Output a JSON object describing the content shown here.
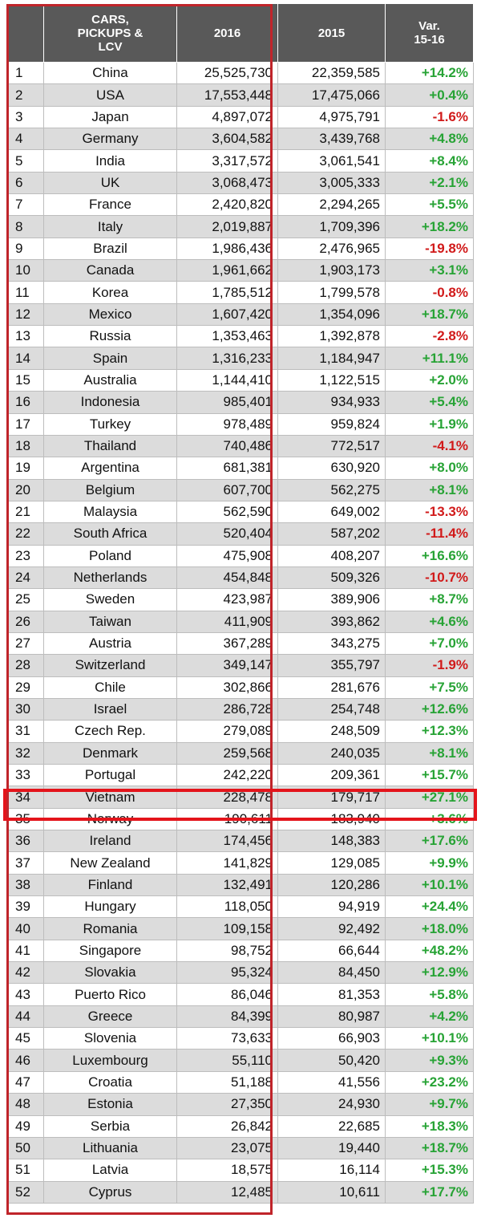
{
  "chart_data": {
    "type": "table",
    "headers": {
      "rank": "",
      "country": "CARS,\nPICKUPS &\nLCV",
      "y2016": "2016",
      "y2015": "2015",
      "variation": "Var.\n15-16"
    },
    "rows": [
      {
        "rank": "1",
        "country": "China",
        "y2016": "25,525,730",
        "y2015": "22,359,585",
        "var": "+14.2%"
      },
      {
        "rank": "2",
        "country": "USA",
        "y2016": "17,553,448",
        "y2015": "17,475,066",
        "var": "+0.4%"
      },
      {
        "rank": "3",
        "country": "Japan",
        "y2016": "4,897,072",
        "y2015": "4,975,791",
        "var": "-1.6%"
      },
      {
        "rank": "4",
        "country": "Germany",
        "y2016": "3,604,582",
        "y2015": "3,439,768",
        "var": "+4.8%"
      },
      {
        "rank": "5",
        "country": "India",
        "y2016": "3,317,572",
        "y2015": "3,061,541",
        "var": "+8.4%"
      },
      {
        "rank": "6",
        "country": "UK",
        "y2016": "3,068,473",
        "y2015": "3,005,333",
        "var": "+2.1%"
      },
      {
        "rank": "7",
        "country": "France",
        "y2016": "2,420,820",
        "y2015": "2,294,265",
        "var": "+5.5%"
      },
      {
        "rank": "8",
        "country": "Italy",
        "y2016": "2,019,887",
        "y2015": "1,709,396",
        "var": "+18.2%"
      },
      {
        "rank": "9",
        "country": "Brazil",
        "y2016": "1,986,436",
        "y2015": "2,476,965",
        "var": "-19.8%"
      },
      {
        "rank": "10",
        "country": "Canada",
        "y2016": "1,961,662",
        "y2015": "1,903,173",
        "var": "+3.1%"
      },
      {
        "rank": "11",
        "country": "Korea",
        "y2016": "1,785,512",
        "y2015": "1,799,578",
        "var": "-0.8%"
      },
      {
        "rank": "12",
        "country": "Mexico",
        "y2016": "1,607,420",
        "y2015": "1,354,096",
        "var": "+18.7%"
      },
      {
        "rank": "13",
        "country": "Russia",
        "y2016": "1,353,463",
        "y2015": "1,392,878",
        "var": "-2.8%"
      },
      {
        "rank": "14",
        "country": "Spain",
        "y2016": "1,316,233",
        "y2015": "1,184,947",
        "var": "+11.1%"
      },
      {
        "rank": "15",
        "country": "Australia",
        "y2016": "1,144,410",
        "y2015": "1,122,515",
        "var": "+2.0%"
      },
      {
        "rank": "16",
        "country": "Indonesia",
        "y2016": "985,401",
        "y2015": "934,933",
        "var": "+5.4%"
      },
      {
        "rank": "17",
        "country": "Turkey",
        "y2016": "978,489",
        "y2015": "959,824",
        "var": "+1.9%"
      },
      {
        "rank": "18",
        "country": "Thailand",
        "y2016": "740,486",
        "y2015": "772,517",
        "var": "-4.1%"
      },
      {
        "rank": "19",
        "country": "Argentina",
        "y2016": "681,381",
        "y2015": "630,920",
        "var": "+8.0%"
      },
      {
        "rank": "20",
        "country": "Belgium",
        "y2016": "607,700",
        "y2015": "562,275",
        "var": "+8.1%"
      },
      {
        "rank": "21",
        "country": "Malaysia",
        "y2016": "562,590",
        "y2015": "649,002",
        "var": "-13.3%"
      },
      {
        "rank": "22",
        "country": "South Africa",
        "y2016": "520,404",
        "y2015": "587,202",
        "var": "-11.4%"
      },
      {
        "rank": "23",
        "country": "Poland",
        "y2016": "475,908",
        "y2015": "408,207",
        "var": "+16.6%"
      },
      {
        "rank": "24",
        "country": "Netherlands",
        "y2016": "454,848",
        "y2015": "509,326",
        "var": "-10.7%"
      },
      {
        "rank": "25",
        "country": "Sweden",
        "y2016": "423,987",
        "y2015": "389,906",
        "var": "+8.7%"
      },
      {
        "rank": "26",
        "country": "Taiwan",
        "y2016": "411,909",
        "y2015": "393,862",
        "var": "+4.6%"
      },
      {
        "rank": "27",
        "country": "Austria",
        "y2016": "367,289",
        "y2015": "343,275",
        "var": "+7.0%"
      },
      {
        "rank": "28",
        "country": "Switzerland",
        "y2016": "349,147",
        "y2015": "355,797",
        "var": "-1.9%"
      },
      {
        "rank": "29",
        "country": "Chile",
        "y2016": "302,866",
        "y2015": "281,676",
        "var": "+7.5%"
      },
      {
        "rank": "30",
        "country": "Israel",
        "y2016": "286,728",
        "y2015": "254,748",
        "var": "+12.6%"
      },
      {
        "rank": "31",
        "country": "Czech Rep.",
        "y2016": "279,089",
        "y2015": "248,509",
        "var": "+12.3%"
      },
      {
        "rank": "32",
        "country": "Denmark",
        "y2016": "259,568",
        "y2015": "240,035",
        "var": "+8.1%"
      },
      {
        "rank": "33",
        "country": "Portugal",
        "y2016": "242,220",
        "y2015": "209,361",
        "var": "+15.7%"
      },
      {
        "rank": "34",
        "country": "Vietnam",
        "y2016": "228,478",
        "y2015": "179,717",
        "var": "+27.1%"
      },
      {
        "rank": "35",
        "country": "Norway",
        "y2016": "190,611",
        "y2015": "183,940",
        "var": "+3.6%"
      },
      {
        "rank": "36",
        "country": "Ireland",
        "y2016": "174,456",
        "y2015": "148,383",
        "var": "+17.6%"
      },
      {
        "rank": "37",
        "country": "New Zealand",
        "y2016": "141,829",
        "y2015": "129,085",
        "var": "+9.9%"
      },
      {
        "rank": "38",
        "country": "Finland",
        "y2016": "132,491",
        "y2015": "120,286",
        "var": "+10.1%"
      },
      {
        "rank": "39",
        "country": "Hungary",
        "y2016": "118,050",
        "y2015": "94,919",
        "var": "+24.4%"
      },
      {
        "rank": "40",
        "country": "Romania",
        "y2016": "109,158",
        "y2015": "92,492",
        "var": "+18.0%"
      },
      {
        "rank": "41",
        "country": "Singapore",
        "y2016": "98,752",
        "y2015": "66,644",
        "var": "+48.2%"
      },
      {
        "rank": "42",
        "country": "Slovakia",
        "y2016": "95,324",
        "y2015": "84,450",
        "var": "+12.9%"
      },
      {
        "rank": "43",
        "country": "Puerto Rico",
        "y2016": "86,046",
        "y2015": "81,353",
        "var": "+5.8%"
      },
      {
        "rank": "44",
        "country": "Greece",
        "y2016": "84,399",
        "y2015": "80,987",
        "var": "+4.2%"
      },
      {
        "rank": "45",
        "country": "Slovenia",
        "y2016": "73,633",
        "y2015": "66,903",
        "var": "+10.1%"
      },
      {
        "rank": "46",
        "country": "Luxembourg",
        "y2016": "55,110",
        "y2015": "50,420",
        "var": "+9.3%"
      },
      {
        "rank": "47",
        "country": "Croatia",
        "y2016": "51,188",
        "y2015": "41,556",
        "var": "+23.2%"
      },
      {
        "rank": "48",
        "country": "Estonia",
        "y2016": "27,350",
        "y2015": "24,930",
        "var": "+9.7%"
      },
      {
        "rank": "49",
        "country": "Serbia",
        "y2016": "26,842",
        "y2015": "22,685",
        "var": "+18.3%"
      },
      {
        "rank": "50",
        "country": "Lithuania",
        "y2016": "23,075",
        "y2015": "19,440",
        "var": "+18.7%"
      },
      {
        "rank": "51",
        "country": "Latvia",
        "y2016": "18,575",
        "y2015": "16,114",
        "var": "+15.3%"
      },
      {
        "rank": "52",
        "country": "Cyprus",
        "y2016": "12,485",
        "y2015": "10,611",
        "var": "+17.7%"
      }
    ],
    "highlight_row": "34",
    "highlight_column": "y2016"
  },
  "colors": {
    "header_bg": "#595959",
    "header_text": "#ffffff",
    "row_alt_bg": "#dcdcdc",
    "positive": "#27a335",
    "negative": "#d11a1a",
    "highlight_border": "#e4141b",
    "column_border": "#c0242a"
  }
}
